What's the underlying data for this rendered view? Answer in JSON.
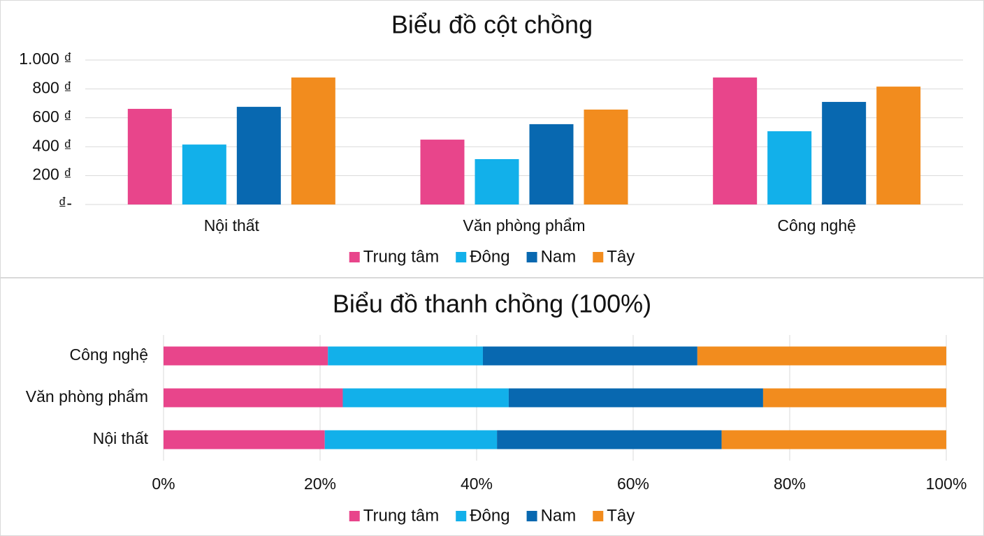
{
  "chart_data": [
    {
      "type": "column",
      "title": "Biểu đồ cột chồng",
      "categories": [
        "Nội thất",
        "Văn phòng phẩm",
        "Công nghệ"
      ],
      "series": [
        {
          "name": "Trung tâm",
          "color": "#e8458b",
          "values": [
            662,
            449,
            879
          ]
        },
        {
          "name": "Đông",
          "color": "#12b0ea",
          "values": [
            415,
            314,
            507
          ]
        },
        {
          "name": "Nam",
          "color": "#0868b0",
          "values": [
            676,
            556,
            710
          ]
        },
        {
          "name": "Tây",
          "color": "#f28c1e",
          "values": [
            879,
            657,
            816
          ]
        }
      ],
      "ylim": [
        0,
        1000
      ],
      "yticks": [
        {
          "value": 0,
          "label": "₫-"
        },
        {
          "value": 200,
          "label": "200 ₫"
        },
        {
          "value": 400,
          "label": "400 ₫"
        },
        {
          "value": 600,
          "label": "600 ₫"
        },
        {
          "value": 800,
          "label": "800 ₫"
        },
        {
          "value": 1000,
          "label": "1.000 ₫"
        }
      ],
      "grid": true,
      "legend": "bottom"
    },
    {
      "type": "stacked_bar_100",
      "title": "Biểu đồ thanh chồng (100%)",
      "categories": [
        "Nội thất",
        "Văn phòng phẩm",
        "Công nghệ"
      ],
      "series": [
        {
          "name": "Trung tâm",
          "color": "#e8458b",
          "values": [
            20.6,
            22.9,
            21.0
          ]
        },
        {
          "name": "Đông",
          "color": "#12b0ea",
          "values": [
            22.0,
            21.2,
            19.8
          ]
        },
        {
          "name": "Nam",
          "color": "#0868b0",
          "values": [
            28.7,
            32.5,
            27.4
          ]
        },
        {
          "name": "Tây",
          "color": "#f28c1e",
          "values": [
            28.7,
            23.4,
            31.8
          ]
        }
      ],
      "xlim": [
        0,
        100
      ],
      "xticks": [
        {
          "value": 0,
          "label": "0%"
        },
        {
          "value": 20,
          "label": "20%"
        },
        {
          "value": 40,
          "label": "40%"
        },
        {
          "value": 60,
          "label": "60%"
        },
        {
          "value": 80,
          "label": "80%"
        },
        {
          "value": 100,
          "label": "100%"
        }
      ],
      "grid": true,
      "legend": "bottom"
    }
  ]
}
